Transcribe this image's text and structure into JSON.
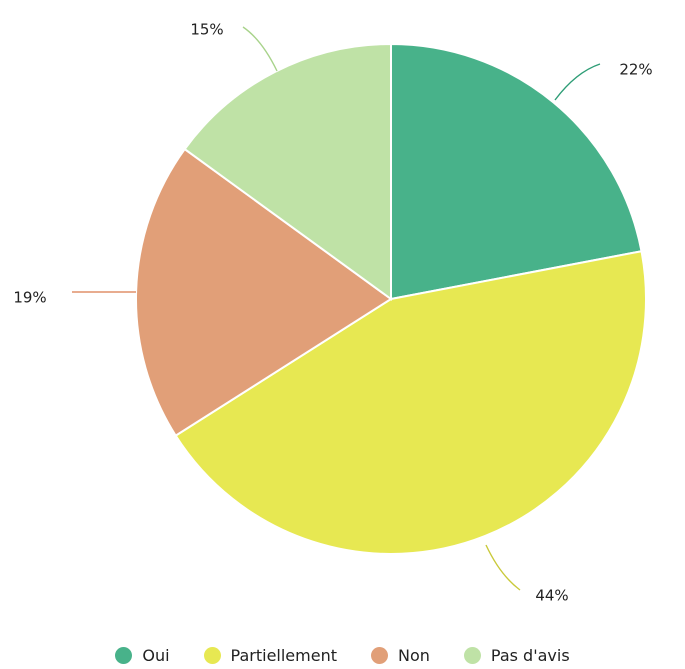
{
  "chart_data": {
    "type": "pie",
    "title": "",
    "slices": [
      {
        "label": "Oui",
        "value": 22,
        "display": "22%",
        "color": "#48b28a"
      },
      {
        "label": "Partiellement",
        "value": 44,
        "display": "44%",
        "color": "#e7e852"
      },
      {
        "label": "Non",
        "value": 19,
        "display": "19%",
        "color": "#e19f78"
      },
      {
        "label": "Pas d'avis",
        "value": 15,
        "display": "15%",
        "color": "#bfe2a6"
      }
    ],
    "legend_position": "bottom"
  }
}
